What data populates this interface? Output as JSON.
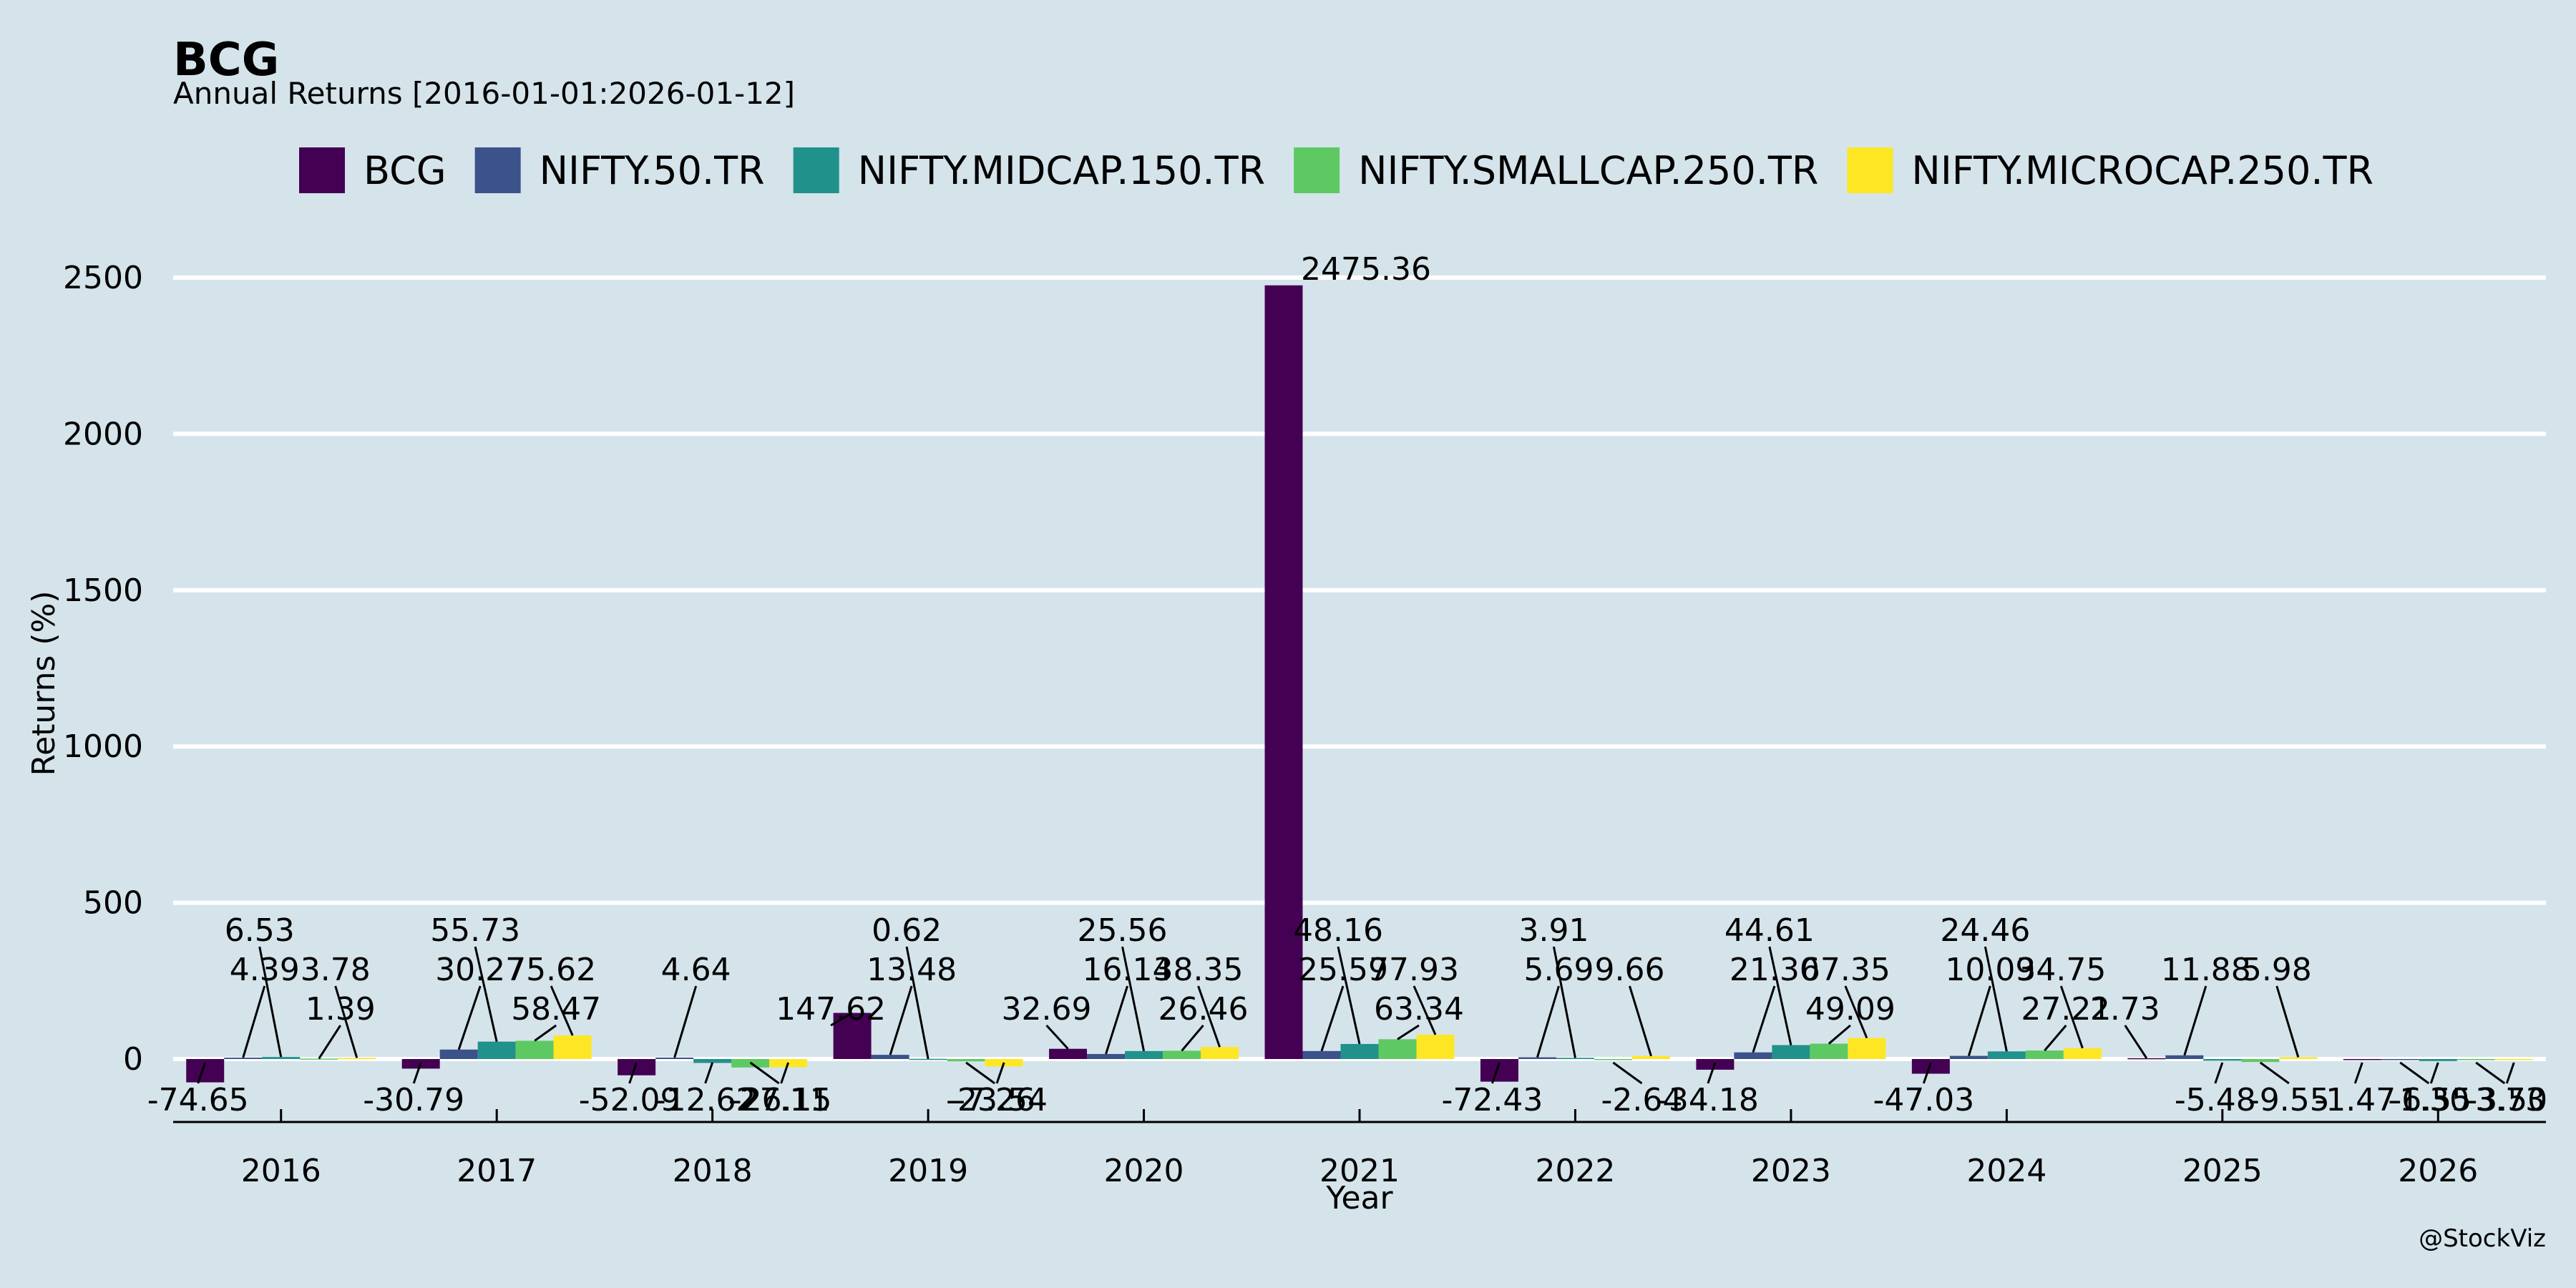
{
  "chart_data": {
    "type": "bar",
    "title": "BCG",
    "subtitle": "Annual Returns [2016-01-01:2026-01-12]",
    "xlabel": "Year",
    "ylabel": "Returns (%)",
    "credit": "@StockViz",
    "categories": [
      "2016",
      "2017",
      "2018",
      "2019",
      "2020",
      "2021",
      "2022",
      "2023",
      "2024",
      "2025",
      "2026"
    ],
    "ylim": [
      -200,
      2650
    ],
    "yticks": [
      0,
      500,
      1000,
      1500,
      2000,
      2500
    ],
    "grid": true,
    "legend_position": "top",
    "series": [
      {
        "name": "BCG",
        "color": "#440154",
        "values": [
          -74.65,
          -30.79,
          -52.09,
          147.62,
          32.69,
          2475.36,
          -72.43,
          -34.18,
          -47.03,
          2.73,
          -1.47
        ],
        "labels": [
          "-74.65",
          "-30.79",
          "-52.09",
          "147.62",
          "32.69",
          "2475.36",
          "-72.43",
          "-34.18",
          "-47.03",
          "2.73",
          "-1.47"
        ]
      },
      {
        "name": "NIFTY.50.TR",
        "color": "#3b528b",
        "values": [
          4.39,
          30.27,
          4.64,
          13.48,
          16.14,
          25.59,
          5.69,
          21.3,
          10.09,
          11.88,
          -1.3
        ],
        "labels": [
          "4.39",
          "30.27",
          "4.64",
          "13.48",
          "16.14",
          "25.59",
          "5.69",
          "21.30",
          "10.09",
          "11.88",
          "-1.30"
        ]
      },
      {
        "name": "NIFTY.MIDCAP.150.TR",
        "color": "#21918c",
        "values": [
          6.53,
          55.73,
          -12.62,
          0.62,
          25.56,
          48.16,
          3.91,
          44.61,
          24.46,
          -5.48,
          -6.55
        ],
        "labels": [
          "6.53",
          "55.73",
          "-12.62",
          "0.62",
          "25.56",
          "48.16",
          "3.91",
          "44.61",
          "24.46",
          "-5.48",
          "-6.55"
        ]
      },
      {
        "name": "NIFTY.SMALLCAP.250.TR",
        "color": "#5ec962",
        "values": [
          1.39,
          58.47,
          -27.11,
          -7.26,
          26.46,
          63.34,
          -2.64,
          49.09,
          27.21,
          -9.55,
          -3.73
        ],
        "labels": [
          "1.39",
          "58.47",
          "-27.11",
          "-7.26",
          "26.46",
          "63.34",
          "-2.64",
          "49.09",
          "27.21",
          "-9.55",
          "-3.73"
        ]
      },
      {
        "name": "NIFTY.MICROCAP.250.TR",
        "color": "#fde725",
        "values": [
          3.78,
          75.62,
          -26.15,
          -23.54,
          38.35,
          77.93,
          9.66,
          67.35,
          34.75,
          5.98,
          -3.5
        ],
        "labels": [
          "3.78",
          "75.62",
          "-26.15",
          "-23.54",
          "38.35",
          "77.93",
          "9.66",
          "67.35",
          "34.75",
          "5.98",
          "-3.50"
        ]
      }
    ]
  }
}
